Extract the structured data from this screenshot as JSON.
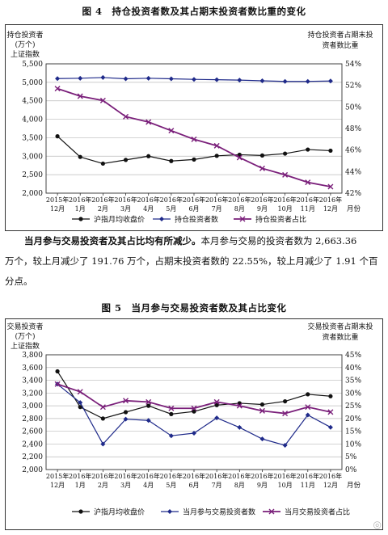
{
  "fig4": {
    "title": "图 4　持仓投资者数及其占期末投资者数比重的变化",
    "left_axis_label": [
      "持仓投资者",
      "(万个)",
      "上证指数"
    ],
    "right_axis_label": [
      "持仓投资者占期末投",
      "资者数比重"
    ],
    "x_unit": "月份",
    "x_tick_labels": [
      [
        "2015年",
        "12月"
      ],
      [
        "2016年",
        "1月"
      ],
      [
        "2016年",
        "2月"
      ],
      [
        "2016年",
        "3月"
      ],
      [
        "2016年",
        "4月"
      ],
      [
        "2016年",
        "5月"
      ],
      [
        "2016年",
        "6月"
      ],
      [
        "2016年",
        "7月"
      ],
      [
        "2016年",
        "8月"
      ],
      [
        "2016年",
        "9月"
      ],
      [
        "2016年",
        "10月"
      ],
      [
        "2016年",
        "11月"
      ],
      [
        "2016年",
        "12月"
      ]
    ],
    "left_ticks": [
      "2,000",
      "2,500",
      "3,000",
      "3,500",
      "4,000",
      "4,500",
      "5,000",
      "5,500"
    ],
    "right_ticks": [
      "42%",
      "44%",
      "46%",
      "48%",
      "50%",
      "52%",
      "54%"
    ],
    "legend": [
      "沪指月均收盘价",
      "持仓投资者数",
      "持仓投资者占比"
    ],
    "colors": {
      "index": "#111111",
      "holders": "#1f2a8a",
      "ratio": "#7a1f7a"
    }
  },
  "para": {
    "bold": "当月参与交易投资者及其占比均有所减少。",
    "line1": "本月参与交易的投资者数为 2,663.36",
    "line2": "万个，较上月减少了 191.76 万个，占期末投资者数的 22.55%，较上月减少了 1.91 个百",
    "line3": "分点。"
  },
  "fig5": {
    "title": "图 5　当月参与交易投资者数及其占比变化",
    "left_axis_label": [
      "交易投资者",
      "(万个)",
      "上证指数"
    ],
    "right_axis_label": [
      "交易投资者占期末投",
      "资者数比重"
    ],
    "x_unit": "月份",
    "x_tick_labels": [
      [
        "2015年",
        "12月"
      ],
      [
        "2016年",
        "1月"
      ],
      [
        "2016年",
        "2月"
      ],
      [
        "2016年",
        "3月"
      ],
      [
        "2016年",
        "4月"
      ],
      [
        "2016年",
        "5月"
      ],
      [
        "2016年",
        "6月"
      ],
      [
        "2016年",
        "7月"
      ],
      [
        "2016年",
        "8月"
      ],
      [
        "2016年",
        "9月"
      ],
      [
        "2016年",
        "10月"
      ],
      [
        "2016年",
        "11月"
      ],
      [
        "2016年",
        "12月"
      ]
    ],
    "left_ticks": [
      "2,000",
      "2,200",
      "2,400",
      "2,600",
      "2,800",
      "3,000",
      "3,200",
      "3,400",
      "3,600",
      "3,800"
    ],
    "right_ticks": [
      "0%",
      "5%",
      "10%",
      "15%",
      "20%",
      "25%",
      "30%",
      "35%",
      "40%",
      "45%"
    ],
    "legend": [
      "沪指月均收盘价",
      "当月参与交易投资者数",
      "当月交易投资者占比"
    ],
    "colors": {
      "index": "#111111",
      "traders": "#1f2a8a",
      "ratio": "#7a1f7a"
    }
  },
  "chart_data": [
    {
      "type": "line",
      "title": "图 4　持仓投资者数及其占期末投资者数比重的变化",
      "x": [
        "2015年12月",
        "2016年1月",
        "2016年2月",
        "2016年3月",
        "2016年4月",
        "2016年5月",
        "2016年6月",
        "2016年7月",
        "2016年8月",
        "2016年9月",
        "2016年10月",
        "2016年11月",
        "2016年12月"
      ],
      "y_left_range": [
        2000,
        5500
      ],
      "y_right_range": [
        42,
        54
      ],
      "series": [
        {
          "name": "沪指月均收盘价",
          "axis": "left",
          "values": [
            3540,
            2980,
            2800,
            2900,
            3000,
            2870,
            2910,
            3010,
            3040,
            3020,
            3070,
            3180,
            3150
          ]
        },
        {
          "name": "持仓投资者数",
          "axis": "left",
          "values": [
            5100,
            5110,
            5130,
            5095,
            5110,
            5095,
            5080,
            5070,
            5060,
            5040,
            5025,
            5025,
            5035
          ]
        },
        {
          "name": "持仓投资者占比",
          "axis": "right",
          "values": [
            51.7,
            51.0,
            50.6,
            49.1,
            48.6,
            47.8,
            47.0,
            46.4,
            45.3,
            44.3,
            43.7,
            43.0,
            42.6
          ]
        }
      ]
    },
    {
      "type": "line",
      "title": "图 5　当月参与交易投资者数及其占比变化",
      "x": [
        "2015年12月",
        "2016年1月",
        "2016年2月",
        "2016年3月",
        "2016年4月",
        "2016年5月",
        "2016年6月",
        "2016年7月",
        "2016年8月",
        "2016年9月",
        "2016年10月",
        "2016年11月",
        "2016年12月"
      ],
      "y_left_range": [
        2000,
        3800
      ],
      "y_right_range": [
        0,
        45
      ],
      "series": [
        {
          "name": "沪指月均收盘价",
          "axis": "left",
          "values": [
            3540,
            2980,
            2800,
            2900,
            3000,
            2870,
            2910,
            3010,
            3040,
            3020,
            3070,
            3180,
            3150
          ]
        },
        {
          "name": "当月参与交易投资者数",
          "axis": "left",
          "values": [
            3340,
            3050,
            2400,
            2790,
            2770,
            2530,
            2570,
            2810,
            2660,
            2480,
            2380,
            2855,
            2663
          ]
        },
        {
          "name": "当月交易投资者占比",
          "axis": "right",
          "values": [
            33.5,
            30.5,
            24.5,
            27.0,
            26.5,
            24.0,
            24.0,
            26.5,
            25.0,
            23.0,
            22.0,
            24.5,
            22.55
          ]
        }
      ]
    }
  ]
}
